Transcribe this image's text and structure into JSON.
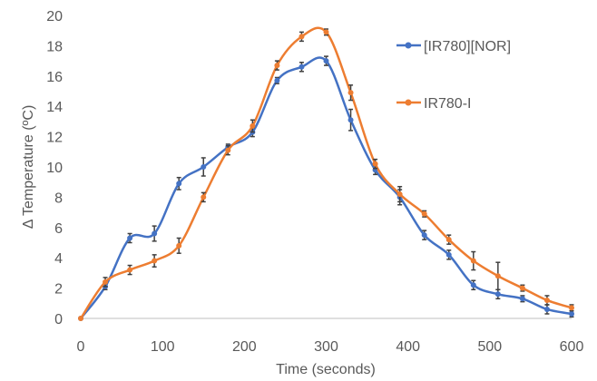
{
  "chart_data": {
    "type": "line",
    "title": "",
    "xlabel": "Time (seconds)",
    "ylabel": "Δ Temperature (ºC)",
    "xlim": [
      0,
      600
    ],
    "ylim": [
      0,
      20
    ],
    "x_ticks": [
      "0",
      "100",
      "200",
      "300",
      "400",
      "500",
      "600"
    ],
    "y_ticks": [
      "0",
      "2",
      "4",
      "6",
      "8",
      "10",
      "12",
      "14",
      "16",
      "18",
      "20"
    ],
    "grid": false,
    "legend_position": "right",
    "x": [
      0,
      30,
      60,
      90,
      120,
      150,
      180,
      210,
      240,
      270,
      300,
      330,
      360,
      390,
      420,
      450,
      480,
      510,
      540,
      570,
      600
    ],
    "series": [
      {
        "name": "[IR780][NOR]",
        "color": "#4472C4",
        "values": [
          0,
          2.1,
          5.3,
          5.6,
          8.9,
          10.0,
          11.3,
          12.3,
          15.7,
          16.6,
          17.0,
          13.1,
          9.8,
          8.0,
          5.5,
          4.2,
          2.2,
          1.6,
          1.3,
          0.6,
          0.3
        ],
        "errors": [
          0,
          0.2,
          0.3,
          0.5,
          0.4,
          0.6,
          0.2,
          0.3,
          0.2,
          0.3,
          0.3,
          0.7,
          0.3,
          0.5,
          0.3,
          0.3,
          0.3,
          0.3,
          0.2,
          0.3,
          0.2
        ]
      },
      {
        "name": "IR780-I",
        "color": "#ED7D31",
        "values": [
          0,
          2.4,
          3.2,
          3.8,
          4.8,
          8.0,
          11.1,
          12.7,
          16.7,
          18.6,
          18.9,
          14.9,
          10.2,
          8.2,
          6.9,
          5.2,
          3.8,
          2.8,
          2.0,
          1.2,
          0.7
        ],
        "errors": [
          0,
          0.3,
          0.3,
          0.4,
          0.5,
          0.3,
          0.3,
          0.4,
          0.3,
          0.3,
          0.2,
          0.5,
          0.3,
          0.5,
          0.2,
          0.3,
          0.6,
          0.9,
          0.2,
          0.3,
          0.2
        ]
      }
    ]
  }
}
